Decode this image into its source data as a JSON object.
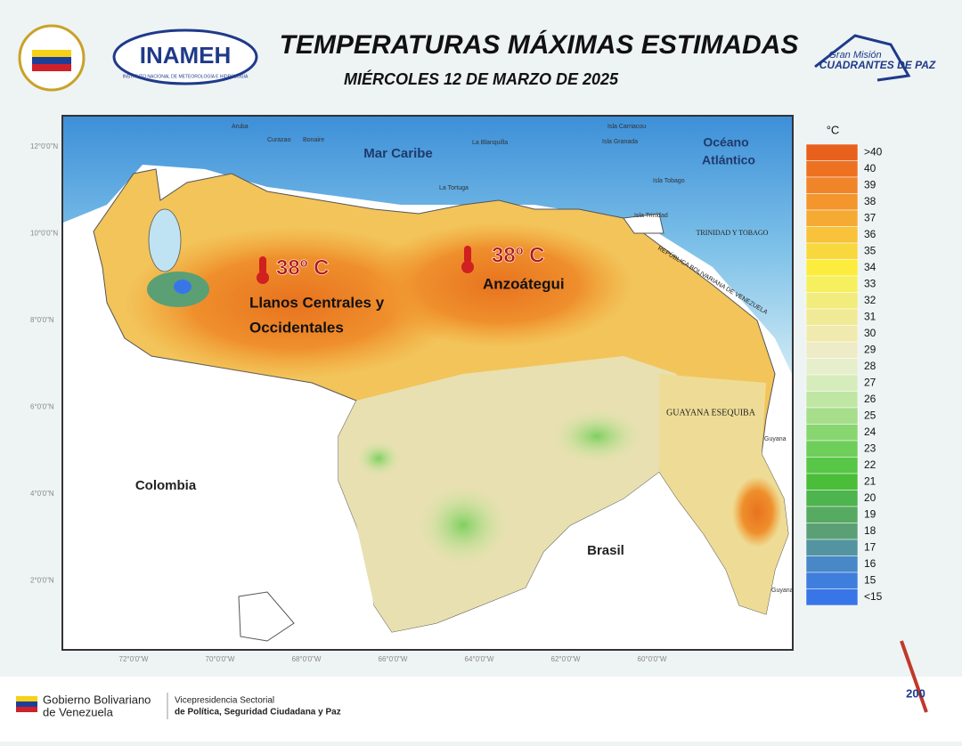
{
  "header": {
    "title": "TEMPERATURAS MÁXIMAS ESTIMADAS",
    "subtitle": "MIÉRCOLES 12 DE MARZO DE 2025",
    "logo_left": "INAMEH",
    "logo_left_sub": "INSTITUTO NACIONAL DE METEOROLOGÍA E HIDROLOGÍA",
    "logo_right_top": "Gran Misión",
    "logo_right_bottom": "CUADRANTES DE PAZ"
  },
  "map": {
    "labels": {
      "sea": "Mar Caribe",
      "ocean_line1": "Océano",
      "ocean_line2": "Atlántico",
      "colombia": "Colombia",
      "brasil": "Brasil",
      "esequiba": "GUAYANA ESEQUIBA",
      "trinidad": "TRINIDAD Y TOBAGO",
      "venezuela": "REPÚBLICA BOLIVARIANA DE VENEZUELA",
      "aruba": "Aruba",
      "curazao": "Curazao",
      "bonaire": "Bonaire",
      "tortuga": "La Tortuga",
      "blanquilla": "La Blanquilla",
      "carriacou": "Isla Carriacou",
      "granada": "Isla Granada",
      "tobago": "Isla Tobago",
      "isla_trinidad": "Isla Trinidad",
      "guyana1": "Guyana",
      "guyana2": "Guyana"
    },
    "lat_labels": [
      "12°0'0\"N",
      "10°0'0\"N",
      "8°0'0\"N",
      "6°0'0\"N",
      "4°0'0\"N",
      "2°0'0\"N"
    ],
    "lon_labels": [
      "72°0'0\"W",
      "70°0'0\"W",
      "68°0'0\"W",
      "66°0'0\"W",
      "64°0'0\"W",
      "62°0'0\"W",
      "60°0'0\"W"
    ],
    "callouts": [
      {
        "temp": "38º C",
        "place_line1": "Llanos Centrales y",
        "place_line2": "Occidentales"
      },
      {
        "temp": "38º C",
        "place_line1": "Anzoátegui"
      }
    ]
  },
  "legend": {
    "unit": "°C",
    "entries": [
      {
        "label": ">40",
        "color": "#e8611c"
      },
      {
        "label": "40",
        "color": "#ec7222"
      },
      {
        "label": "39",
        "color": "#f08428"
      },
      {
        "label": "38",
        "color": "#f3962e"
      },
      {
        "label": "37",
        "color": "#f5aa34"
      },
      {
        "label": "36",
        "color": "#f8c23a"
      },
      {
        "label": "35",
        "color": "#f9d83e"
      },
      {
        "label": "34",
        "color": "#fbec3e"
      },
      {
        "label": "33",
        "color": "#f6ef5e"
      },
      {
        "label": "32",
        "color": "#f2ec7c"
      },
      {
        "label": "31",
        "color": "#f0ea96"
      },
      {
        "label": "30",
        "color": "#f0eaae"
      },
      {
        "label": "29",
        "color": "#eeecc6"
      },
      {
        "label": "28",
        "color": "#e6eecc"
      },
      {
        "label": "27",
        "color": "#d6ecbc"
      },
      {
        "label": "26",
        "color": "#c0e6a4"
      },
      {
        "label": "25",
        "color": "#a6de8c"
      },
      {
        "label": "24",
        "color": "#88d670"
      },
      {
        "label": "23",
        "color": "#6ece5a"
      },
      {
        "label": "22",
        "color": "#58c646"
      },
      {
        "label": "21",
        "color": "#4abe3a"
      },
      {
        "label": "20",
        "color": "#4eb44e"
      },
      {
        "label": "19",
        "color": "#56aa62"
      },
      {
        "label": "18",
        "color": "#5aa074"
      },
      {
        "label": "17",
        "color": "#5494a0"
      },
      {
        "label": "16",
        "color": "#4888c6"
      },
      {
        "label": "15",
        "color": "#407ede"
      },
      {
        "label": "<15",
        "color": "#3876e8"
      }
    ]
  },
  "footer": {
    "gov_line1": "Gobierno Bolivariano",
    "gov_line2": "de Venezuela",
    "vice_line1": "Vicepresidencia Sectorial",
    "vice_line2": "de Política, Seguridad Ciudadana y Paz",
    "badge": "200"
  }
}
